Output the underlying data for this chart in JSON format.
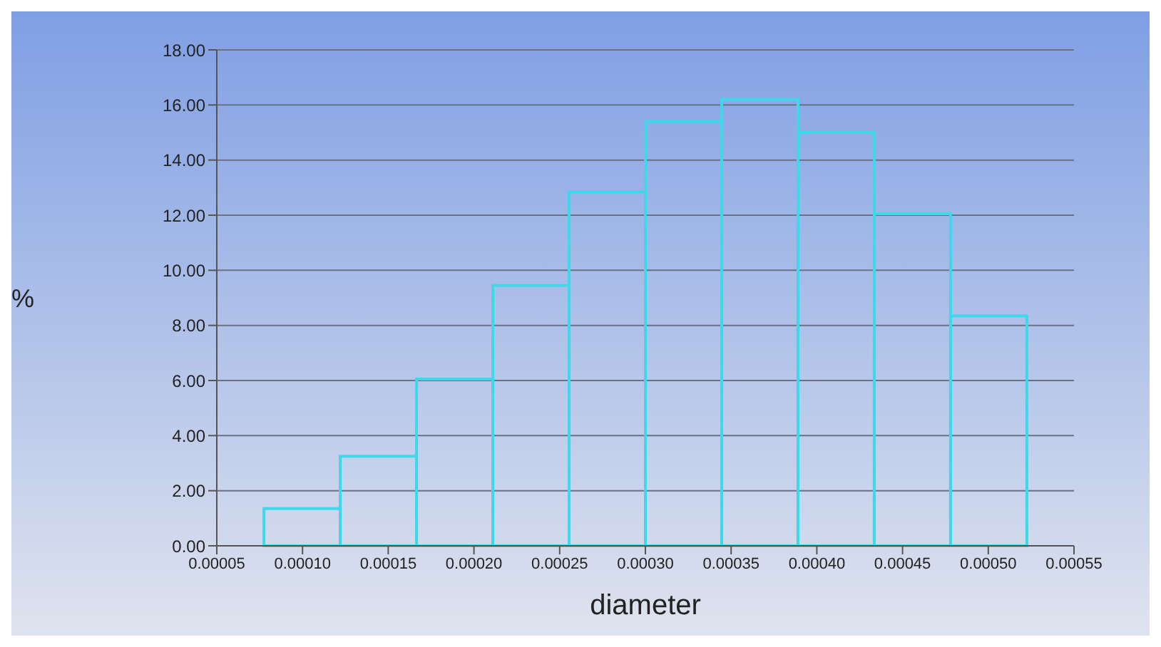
{
  "chart_data": {
    "type": "histogram",
    "xlabel": "diameter",
    "ylabel": "%",
    "bins": [
      7.75e-05,
      0.000122,
      0.0001665,
      0.000211,
      0.0002555,
      0.0003,
      0.0003445,
      0.000389,
      0.0004335,
      0.000478,
      0.0005225
    ],
    "values": [
      1.35,
      3.25,
      6.05,
      9.45,
      12.85,
      15.4,
      16.2,
      15.0,
      12.05,
      8.35
    ],
    "color": "#3fd8ea",
    "xlim": [
      5e-05,
      0.00055
    ],
    "xticks": [
      {
        "value": 5e-05,
        "label": "0.00005"
      },
      {
        "value": 0.0001,
        "label": "0.00010"
      },
      {
        "value": 0.00015,
        "label": "0.00015"
      },
      {
        "value": 0.0002,
        "label": "0.00020"
      },
      {
        "value": 0.00025,
        "label": "0.00025"
      },
      {
        "value": 0.0003,
        "label": "0.00030"
      },
      {
        "value": 0.00035,
        "label": "0.00035"
      },
      {
        "value": 0.0004,
        "label": "0.00040"
      },
      {
        "value": 0.00045,
        "label": "0.00045"
      },
      {
        "value": 0.0005,
        "label": "0.00050"
      },
      {
        "value": 0.00055,
        "label": "0.00055"
      }
    ],
    "ylim": [
      0,
      18
    ],
    "yticks": [
      {
        "value": 0,
        "label": "0.00"
      },
      {
        "value": 2,
        "label": "2.00"
      },
      {
        "value": 4,
        "label": "4.00"
      },
      {
        "value": 6,
        "label": "6.00"
      },
      {
        "value": 8,
        "label": "8.00"
      },
      {
        "value": 10,
        "label": "10.00"
      },
      {
        "value": 12,
        "label": "12.00"
      },
      {
        "value": 14,
        "label": "14.00"
      },
      {
        "value": 16,
        "label": "16.00"
      },
      {
        "value": 18,
        "label": "18.00"
      }
    ],
    "grid": "y"
  }
}
